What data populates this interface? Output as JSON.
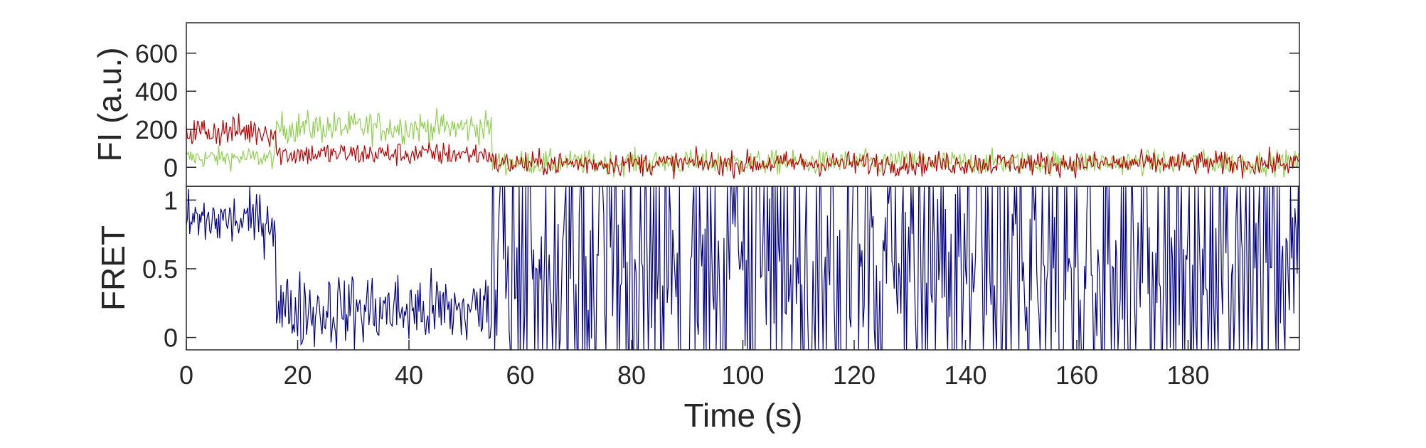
{
  "chart_data": [
    {
      "type": "line",
      "panel": "top",
      "ylabel": "FI (a.u.)",
      "xlim": [
        0,
        200
      ],
      "ylim": [
        -100,
        760
      ],
      "yticks": [
        0,
        200,
        400,
        600
      ],
      "ytick_labels": [
        "0",
        "200",
        "400",
        "600"
      ],
      "grid": false,
      "segments_description": "green and red intensity traces",
      "series": [
        {
          "color": "#8fd14f",
          "levels": [
            {
              "x_range": [
                0,
                16
              ],
              "mean": 50,
              "noise": 40
            },
            {
              "x_range": [
                16,
                55
              ],
              "mean": 210,
              "noise": 60
            },
            {
              "x_range": [
                55,
                200
              ],
              "mean": 25,
              "noise": 45
            }
          ]
        },
        {
          "color": "#c00000",
          "levels": [
            {
              "x_range": [
                0,
                16
              ],
              "mean": 190,
              "noise": 60
            },
            {
              "x_range": [
                16,
                55
              ],
              "mean": 70,
              "noise": 45
            },
            {
              "x_range": [
                55,
                200
              ],
              "mean": 20,
              "noise": 45
            }
          ]
        }
      ]
    },
    {
      "type": "line",
      "panel": "bottom",
      "ylabel": "FRET",
      "xlabel": "Time (s)",
      "xlim": [
        0,
        200
      ],
      "ylim": [
        -0.09,
        1.1
      ],
      "xticks": [
        0,
        20,
        40,
        60,
        80,
        100,
        120,
        140,
        160,
        180
      ],
      "xtick_labels": [
        "0",
        "20",
        "40",
        "60",
        "80",
        "100",
        "120",
        "140",
        "160",
        "180"
      ],
      "yticks": [
        0,
        0.5,
        1
      ],
      "ytick_labels": [
        "0",
        "0.5",
        "1"
      ],
      "grid": false,
      "series": [
        {
          "color": "#00008b",
          "levels": [
            {
              "x_range": [
                0,
                16
              ],
              "mean": 0.85,
              "noise": 0.15
            },
            {
              "x_range": [
                16,
                55
              ],
              "mean": 0.2,
              "noise": 0.2
            },
            {
              "x_range": [
                55,
                200
              ],
              "mean": 0.5,
              "noise": 0.6
            }
          ]
        }
      ]
    }
  ]
}
